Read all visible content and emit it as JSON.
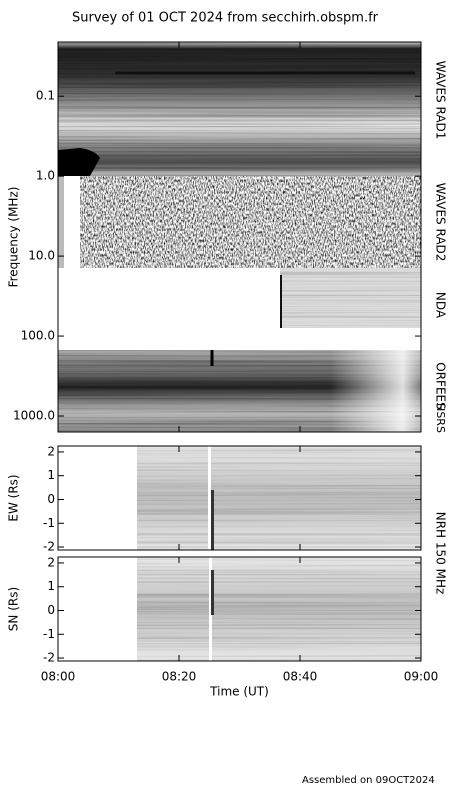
{
  "chart_data": [
    {
      "type": "spectrogram",
      "title": "Survey of 01 OCT 2024 from secchirh.obspm.fr",
      "ylabel": "Frequency (MHz)",
      "log": true,
      "inverted": true,
      "ylim": [
        0.021,
        1585
      ],
      "yticks": [
        0.1,
        {
          "value": 1,
          "label": "1.0"
        },
        {
          "value": 10,
          "label": "10.0"
        },
        {
          "value": 100,
          "label": "100.0"
        },
        {
          "value": 1000,
          "label": "1000.0"
        }
      ],
      "band_labels": [
        "WAVES RAD1",
        "WAVES RAD2",
        "NDA",
        "ORFEES",
        "HSRS"
      ]
    },
    {
      "type": "image",
      "ylabel": "EW (Rs)",
      "right_label": "NRH 150 MHz",
      "ylim": [
        -2.125,
        2.25
      ],
      "yticks": [
        -2,
        -1,
        0,
        1,
        2
      ]
    },
    {
      "type": "image",
      "ylabel": "SN (Rs)",
      "ylim": [
        -2.125,
        2.25
      ],
      "yticks": [
        -2,
        -1,
        0,
        1,
        2
      ],
      "xlabel": "Time (UT)",
      "xlim": [
        "08:00",
        "09:00"
      ],
      "xticks": [
        "08:00",
        "08:20",
        "08:40",
        "09:00"
      ]
    }
  ],
  "footer": "Assembled on 09OCT2024"
}
